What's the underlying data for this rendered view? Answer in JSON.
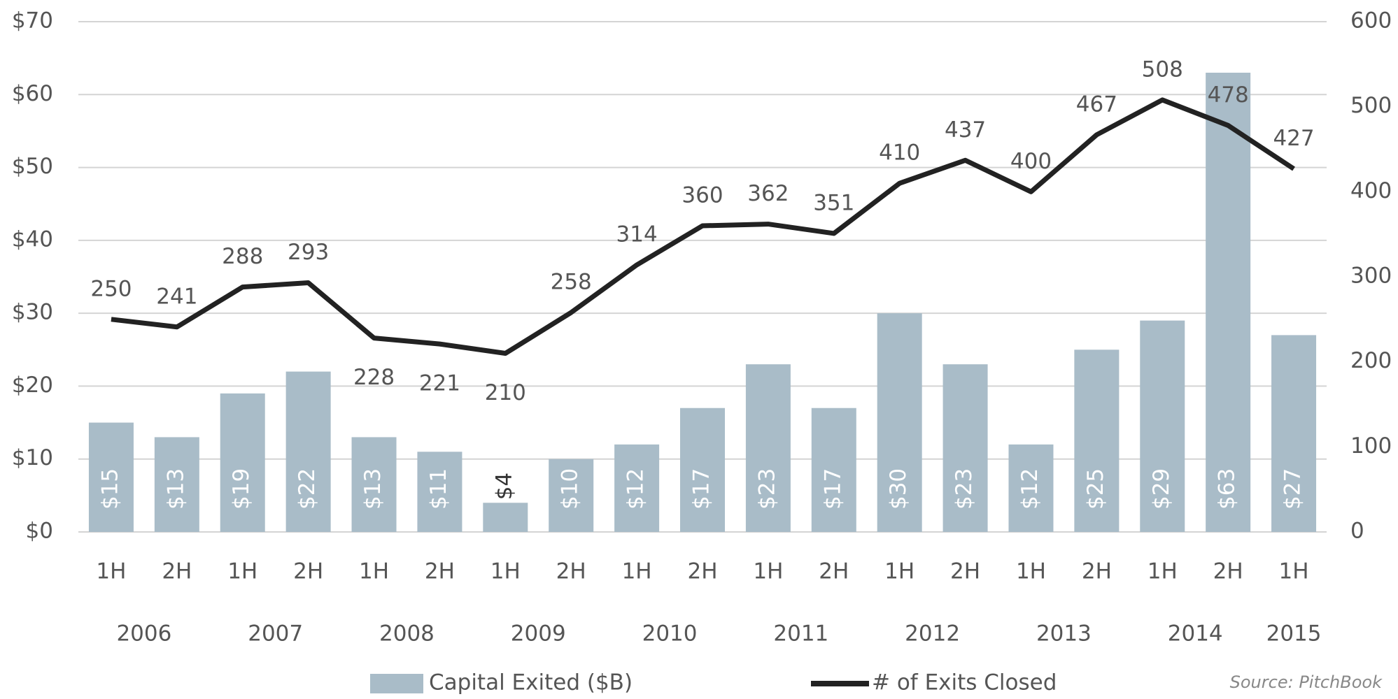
{
  "chart_data": {
    "type": "bar_line",
    "categories": [
      "1H",
      "2H",
      "1H",
      "2H",
      "1H",
      "2H",
      "1H",
      "2H",
      "1H",
      "2H",
      "1H",
      "2H",
      "1H",
      "2H",
      "1H",
      "2H",
      "1H",
      "2H",
      "1H"
    ],
    "years": [
      "2006",
      "2007",
      "2008",
      "2009",
      "2010",
      "2011",
      "2012",
      "2013",
      "2014",
      "2015"
    ],
    "series": [
      {
        "name": "Capital Exited ($B)",
        "type": "bar",
        "color": "#a9bcc8",
        "values": [
          15,
          13,
          19,
          22,
          13,
          11,
          4,
          10,
          12,
          17,
          23,
          17,
          30,
          23,
          12,
          25,
          29,
          63,
          27
        ],
        "value_labels": [
          "$15",
          "$13",
          "$19",
          "$22",
          "$13",
          "$11",
          "$4",
          "$10",
          "$12",
          "$17",
          "$23",
          "$17",
          "$30",
          "$23",
          "$12",
          "$25",
          "$29",
          "$63",
          "$27"
        ]
      },
      {
        "name": "# of Exits Closed",
        "type": "line",
        "axis": "y2",
        "color": "#222222",
        "values": [
          250,
          241,
          288,
          293,
          228,
          221,
          210,
          258,
          314,
          360,
          362,
          351,
          410,
          437,
          400,
          467,
          508,
          478,
          427
        ]
      }
    ],
    "ylim": [
      0,
      70
    ],
    "yticks": [
      {
        "value": 0,
        "label": "$0"
      },
      {
        "value": 10,
        "label": "$10"
      },
      {
        "value": 20,
        "label": "$20"
      },
      {
        "value": 30,
        "label": "$30"
      },
      {
        "value": 40,
        "label": "$40"
      },
      {
        "value": 50,
        "label": "$50"
      },
      {
        "value": 60,
        "label": "$60"
      },
      {
        "value": 70,
        "label": "$70"
      }
    ],
    "y2lim": [
      0,
      600
    ],
    "y2ticks": [
      0,
      100,
      200,
      300,
      400,
      500,
      600
    ],
    "grid": true,
    "source": "Source: PitchBook"
  }
}
